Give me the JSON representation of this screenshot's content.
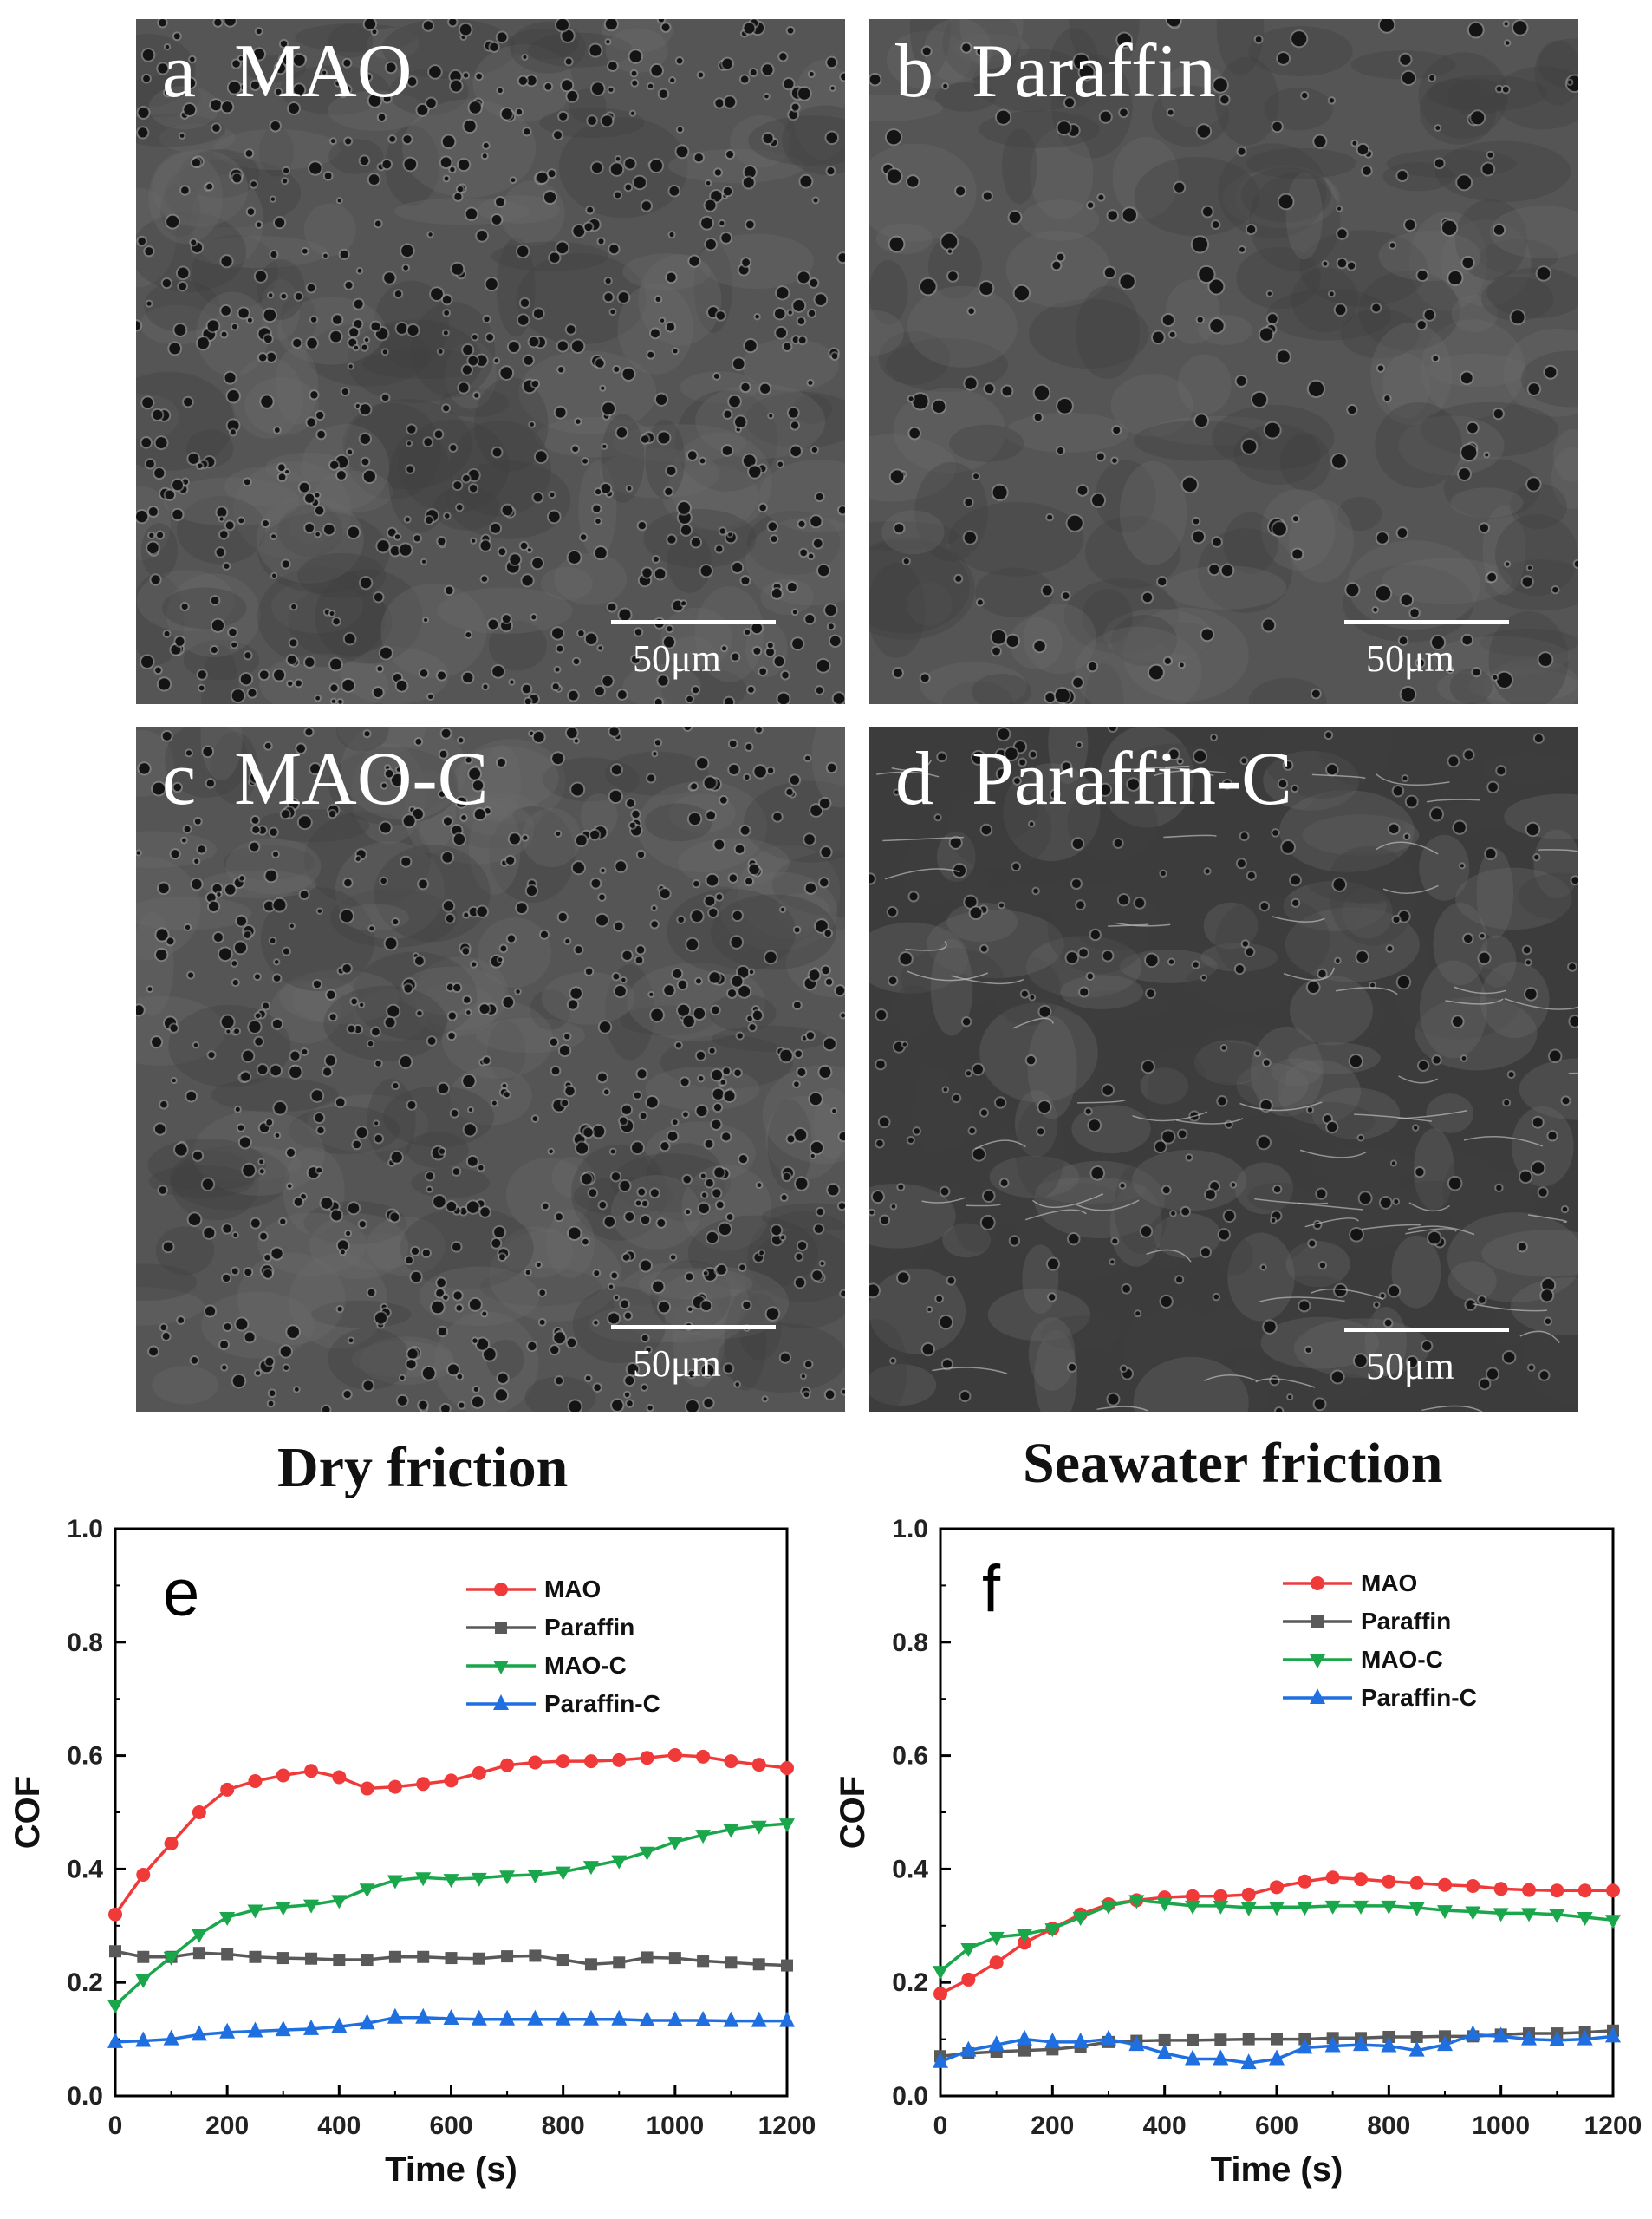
{
  "panels": [
    {
      "letter": "a",
      "name": "MAO",
      "scale": "50μm"
    },
    {
      "letter": "b",
      "name": "Paraffin",
      "scale": "50μm"
    },
    {
      "letter": "c",
      "name": "MAO-C",
      "scale": "50μm"
    },
    {
      "letter": "d",
      "name": "Paraffin-C",
      "scale": "50μm"
    }
  ],
  "section_titles": {
    "dry": "Dry friction",
    "sea": "Seawater friction"
  },
  "colors": {
    "MAO": "#f03a3a",
    "Paraffin": "#595959",
    "MAO-C": "#1aa64a",
    "Paraffin-C": "#1f6fe0"
  },
  "chart_data": [
    {
      "type": "line",
      "panel_label": "e",
      "xlabel": "Time (s)",
      "ylabel": "COF",
      "xlim": [
        0,
        1200
      ],
      "ylim": [
        0,
        1.0
      ],
      "xticks": [
        "0",
        "200",
        "400",
        "600",
        "800",
        "1000",
        "1200"
      ],
      "yticks": [
        "0.0",
        "0.2",
        "0.4",
        "0.6",
        "0.8",
        "1.0"
      ],
      "legend_position": "top-right",
      "x": [
        0,
        50,
        100,
        150,
        200,
        250,
        300,
        350,
        400,
        450,
        500,
        550,
        600,
        650,
        700,
        750,
        800,
        850,
        900,
        950,
        1000,
        1050,
        1100,
        1150,
        1200
      ],
      "series": [
        {
          "name": "MAO",
          "marker": "circle",
          "values": [
            0.32,
            0.39,
            0.445,
            0.5,
            0.54,
            0.555,
            0.565,
            0.573,
            0.562,
            0.542,
            0.545,
            0.55,
            0.556,
            0.569,
            0.583,
            0.588,
            0.59,
            0.59,
            0.592,
            0.596,
            0.601,
            0.598,
            0.59,
            0.584,
            0.578
          ]
        },
        {
          "name": "Paraffin",
          "marker": "square",
          "values": [
            0.255,
            0.245,
            0.245,
            0.252,
            0.25,
            0.245,
            0.243,
            0.242,
            0.24,
            0.24,
            0.245,
            0.245,
            0.243,
            0.242,
            0.246,
            0.247,
            0.24,
            0.232,
            0.235,
            0.244,
            0.243,
            0.238,
            0.235,
            0.232,
            0.23
          ]
        },
        {
          "name": "MAO-C",
          "marker": "triangle-down",
          "values": [
            0.16,
            0.205,
            0.245,
            0.285,
            0.315,
            0.328,
            0.333,
            0.337,
            0.345,
            0.365,
            0.38,
            0.385,
            0.382,
            0.384,
            0.388,
            0.39,
            0.395,
            0.405,
            0.415,
            0.43,
            0.448,
            0.46,
            0.47,
            0.476,
            0.48
          ]
        },
        {
          "name": "Paraffin-C",
          "marker": "triangle-up",
          "values": [
            0.095,
            0.097,
            0.1,
            0.108,
            0.112,
            0.114,
            0.116,
            0.118,
            0.122,
            0.128,
            0.138,
            0.138,
            0.136,
            0.135,
            0.135,
            0.135,
            0.135,
            0.135,
            0.135,
            0.133,
            0.133,
            0.133,
            0.132,
            0.132,
            0.132
          ]
        }
      ]
    },
    {
      "type": "line",
      "panel_label": "f",
      "xlabel": "Time (s)",
      "ylabel": "COF",
      "xlim": [
        0,
        1200
      ],
      "ylim": [
        0,
        1.0
      ],
      "xticks": [
        "0",
        "200",
        "400",
        "600",
        "800",
        "1000",
        "1200"
      ],
      "yticks": [
        "0.0",
        "0.2",
        "0.4",
        "0.6",
        "0.8",
        "1.0"
      ],
      "legend_position": "top-right",
      "x": [
        0,
        50,
        100,
        150,
        200,
        250,
        300,
        350,
        400,
        450,
        500,
        550,
        600,
        650,
        700,
        750,
        800,
        850,
        900,
        950,
        1000,
        1050,
        1100,
        1150,
        1200
      ],
      "series": [
        {
          "name": "MAO",
          "marker": "circle",
          "values": [
            0.18,
            0.205,
            0.235,
            0.27,
            0.295,
            0.32,
            0.338,
            0.345,
            0.35,
            0.352,
            0.352,
            0.355,
            0.368,
            0.378,
            0.385,
            0.382,
            0.378,
            0.375,
            0.372,
            0.37,
            0.365,
            0.363,
            0.362,
            0.362,
            0.362
          ]
        },
        {
          "name": "Paraffin",
          "marker": "square",
          "values": [
            0.07,
            0.075,
            0.078,
            0.08,
            0.082,
            0.087,
            0.095,
            0.097,
            0.098,
            0.098,
            0.099,
            0.1,
            0.1,
            0.1,
            0.102,
            0.102,
            0.104,
            0.104,
            0.105,
            0.105,
            0.108,
            0.11,
            0.11,
            0.112,
            0.115
          ]
        },
        {
          "name": "MAO-C",
          "marker": "triangle-down",
          "values": [
            0.22,
            0.26,
            0.28,
            0.285,
            0.295,
            0.315,
            0.335,
            0.345,
            0.34,
            0.335,
            0.335,
            0.332,
            0.333,
            0.333,
            0.335,
            0.335,
            0.335,
            0.332,
            0.327,
            0.325,
            0.322,
            0.322,
            0.32,
            0.315,
            0.31
          ]
        },
        {
          "name": "Paraffin-C",
          "marker": "triangle-up",
          "values": [
            0.06,
            0.08,
            0.09,
            0.1,
            0.095,
            0.095,
            0.1,
            0.09,
            0.075,
            0.065,
            0.065,
            0.058,
            0.065,
            0.085,
            0.088,
            0.09,
            0.088,
            0.08,
            0.09,
            0.108,
            0.105,
            0.1,
            0.098,
            0.1,
            0.105
          ]
        }
      ]
    }
  ]
}
